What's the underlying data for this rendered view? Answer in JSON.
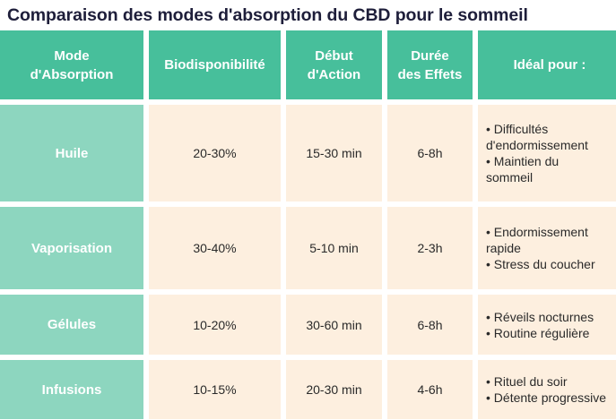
{
  "title": "Comparaison des modes d'absorption du CBD pour le sommeil",
  "headers": {
    "mode": [
      "Mode",
      "d'Absorption"
    ],
    "bio": [
      "Biodisponibilité"
    ],
    "debut": [
      "Début",
      "d'Action"
    ],
    "duree": [
      "Durée",
      "des Effets"
    ],
    "ideal": [
      "Idéal pour :"
    ]
  },
  "rows": [
    {
      "mode": "Huile",
      "bio": "20-30%",
      "debut": "15-30 min",
      "duree": "6-8h",
      "ideal": [
        [
          "• Difficultés",
          "d'endormissement"
        ],
        [
          "• Maintien du",
          "sommeil"
        ]
      ]
    },
    {
      "mode": "Vaporisation",
      "bio": "30-40%",
      "debut": "5-10 min",
      "duree": "2-3h",
      "ideal": [
        [
          "• Endormissement",
          "rapide"
        ],
        [
          "• Stress du coucher"
        ]
      ]
    },
    {
      "mode": "Gélules",
      "bio": "10-20%",
      "debut": "30-60 min",
      "duree": "6-8h",
      "ideal": [
        [
          "• Réveils nocturnes"
        ],
        [
          "• Routine régulière"
        ]
      ]
    },
    {
      "mode": "Infusions",
      "bio": "10-15%",
      "debut": "20-30 min",
      "duree": "4-6h",
      "ideal": [
        [
          "• Rituel du soir"
        ],
        [
          "• Détente progressive"
        ]
      ]
    }
  ],
  "colors": {
    "header_bg": "#47bf9b",
    "mode_bg": "#8dd6bf",
    "value_bg": "#fdefdf",
    "title_color": "#1e1e3a"
  }
}
